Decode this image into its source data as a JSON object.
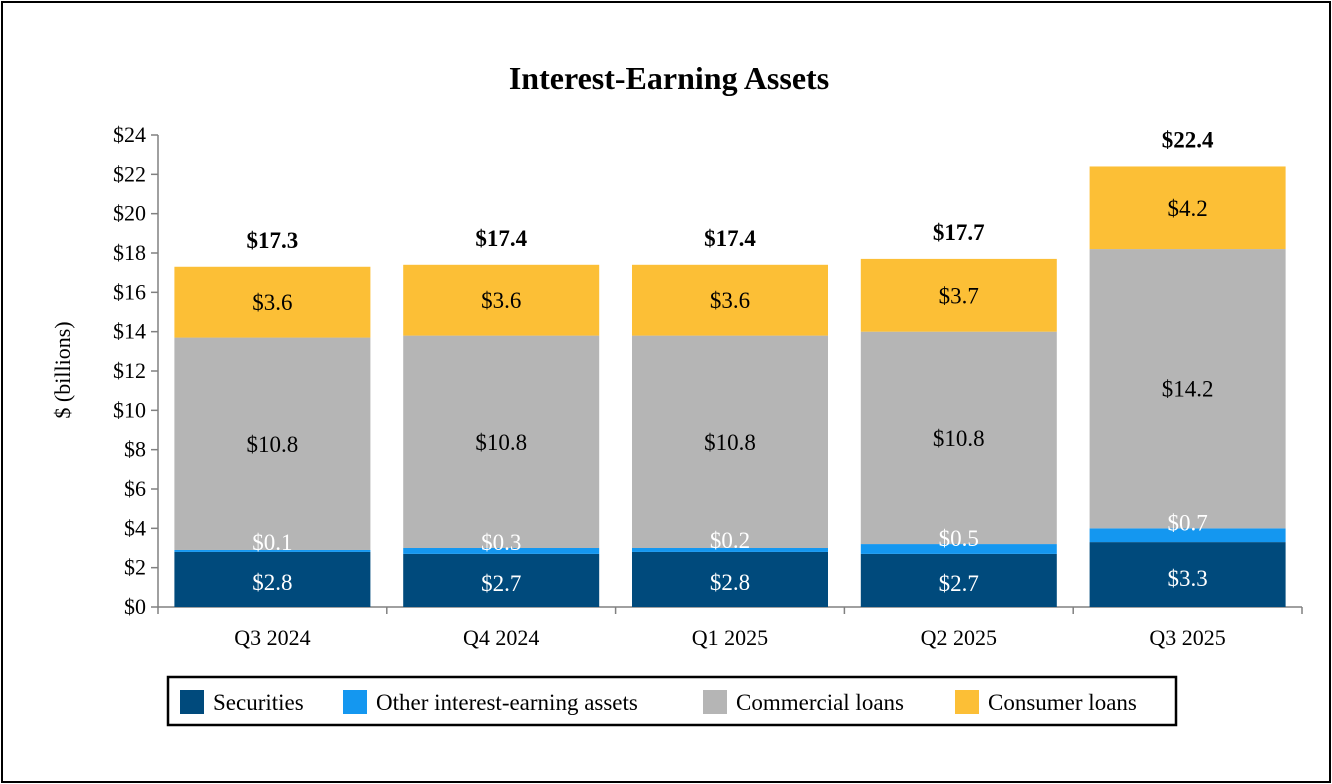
{
  "chart_data": {
    "type": "bar",
    "stacked": true,
    "title": "Interest-Earning Assets",
    "ylabel": "$ (billions)",
    "xlabel": "",
    "ylim": [
      0,
      24
    ],
    "ytick_step": 2,
    "ytick_labels": [
      "$0",
      "$2",
      "$4",
      "$6",
      "$8",
      "$10",
      "$12",
      "$14",
      "$16",
      "$18",
      "$20",
      "$22",
      "$24"
    ],
    "categories": [
      "Q3 2024",
      "Q4 2024",
      "Q1 2025",
      "Q2 2025",
      "Q3 2025"
    ],
    "series": [
      {
        "name": "Securities",
        "color": "#004a7c",
        "label_color": "#ffffff",
        "values": [
          2.8,
          2.7,
          2.8,
          2.7,
          3.3
        ],
        "labels": [
          "$2.8",
          "$2.7",
          "$2.8",
          "$2.7",
          "$3.3"
        ]
      },
      {
        "name": "Other interest-earning assets",
        "color": "#1497f0",
        "label_color": "#ffffff",
        "values": [
          0.1,
          0.3,
          0.2,
          0.5,
          0.7
        ],
        "labels": [
          "$0.1",
          "$0.3",
          "$0.2",
          "$0.5",
          "$0.7"
        ]
      },
      {
        "name": "Commercial loans",
        "color": "#b5b5b5",
        "label_color": "#000000",
        "values": [
          10.8,
          10.8,
          10.8,
          10.8,
          14.2
        ],
        "labels": [
          "$10.8",
          "$10.8",
          "$10.8",
          "$10.8",
          "$14.2"
        ]
      },
      {
        "name": "Consumer loans",
        "color": "#fcbf36",
        "label_color": "#000000",
        "values": [
          3.6,
          3.6,
          3.6,
          3.7,
          4.2
        ],
        "labels": [
          "$3.6",
          "$3.6",
          "$3.6",
          "$3.7",
          "$4.2"
        ]
      }
    ],
    "totals": [
      17.3,
      17.4,
      17.4,
      17.7,
      22.4
    ],
    "total_labels": [
      "$17.3",
      "$17.4",
      "$17.4",
      "$17.7",
      "$22.4"
    ],
    "grid": false,
    "legend_position": "bottom"
  }
}
